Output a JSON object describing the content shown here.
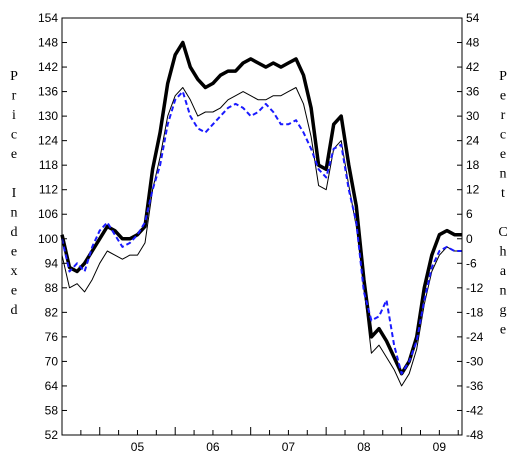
{
  "chart_data": {
    "type": "line",
    "left_axis": {
      "label": "Price Indexed",
      "ylim": [
        52,
        154
      ],
      "ticks": [
        52,
        58,
        64,
        70,
        76,
        82,
        88,
        94,
        100,
        106,
        112,
        118,
        124,
        130,
        136,
        142,
        148,
        154
      ]
    },
    "right_axis": {
      "label": "Percent Change",
      "ylim": [
        -48,
        54
      ],
      "ticks": [
        -48,
        -42,
        -36,
        -30,
        -24,
        -18,
        -12,
        -6,
        0,
        6,
        12,
        18,
        24,
        30,
        36,
        42,
        48,
        54
      ]
    },
    "x_axis": {
      "categories": [
        "05",
        "06",
        "07",
        "08",
        "09"
      ],
      "xlim": [
        2004.5,
        2009.8
      ]
    },
    "grid": false,
    "legend": "none",
    "series": [
      {
        "axis": "left",
        "color": "#000000",
        "style": "thick",
        "x": [
          2004.5,
          2004.6,
          2004.7,
          2004.8,
          2004.9,
          2005.0,
          2005.1,
          2005.2,
          2005.3,
          2005.4,
          2005.5,
          2005.6,
          2005.7,
          2005.8,
          2005.9,
          2006.0,
          2006.1,
          2006.2,
          2006.3,
          2006.4,
          2006.5,
          2006.6,
          2006.7,
          2006.8,
          2006.9,
          2007.0,
          2007.1,
          2007.2,
          2007.3,
          2007.4,
          2007.5,
          2007.6,
          2007.7,
          2007.8,
          2007.9,
          2008.0,
          2008.1,
          2008.2,
          2008.3,
          2008.4,
          2008.5,
          2008.6,
          2008.7,
          2008.8,
          2008.9,
          2009.0,
          2009.1,
          2009.2,
          2009.3,
          2009.4,
          2009.5,
          2009.6,
          2009.7,
          2009.8
        ],
        "values": [
          101,
          93,
          92,
          94,
          97,
          100,
          103,
          102,
          100,
          100,
          101,
          103,
          117,
          126,
          138,
          145,
          148,
          142,
          139,
          137,
          138,
          140,
          141,
          141,
          143,
          144,
          143,
          142,
          143,
          142,
          143,
          144,
          140,
          132,
          118,
          117,
          128,
          130,
          118,
          108,
          90,
          76,
          78,
          75,
          71,
          67,
          70,
          76,
          88,
          96,
          101,
          102,
          101,
          101
        ]
      },
      {
        "axis": "left",
        "color": "#000000",
        "style": "thin",
        "x": [
          2004.5,
          2004.6,
          2004.7,
          2004.8,
          2004.9,
          2005.0,
          2005.1,
          2005.2,
          2005.3,
          2005.4,
          2005.5,
          2005.6,
          2005.7,
          2005.8,
          2005.9,
          2006.0,
          2006.1,
          2006.2,
          2006.3,
          2006.4,
          2006.5,
          2006.6,
          2006.7,
          2006.8,
          2006.9,
          2007.0,
          2007.1,
          2007.2,
          2007.3,
          2007.4,
          2007.5,
          2007.6,
          2007.7,
          2007.8,
          2007.9,
          2008.0,
          2008.1,
          2008.2,
          2008.3,
          2008.4,
          2008.5,
          2008.6,
          2008.7,
          2008.8,
          2008.9,
          2009.0,
          2009.1,
          2009.2,
          2009.3,
          2009.4,
          2009.5,
          2009.6,
          2009.7,
          2009.8
        ],
        "values": [
          96,
          88,
          89,
          87,
          90,
          94,
          97,
          96,
          95,
          96,
          96,
          99,
          112,
          120,
          130,
          135,
          137,
          134,
          130,
          131,
          131,
          132,
          134,
          135,
          136,
          135,
          134,
          134,
          135,
          135,
          136,
          137,
          133,
          125,
          113,
          112,
          122,
          124,
          113,
          103,
          88,
          72,
          74,
          71,
          68,
          64,
          67,
          73,
          84,
          92,
          96,
          98,
          97,
          97
        ]
      },
      {
        "axis": "left",
        "color": "#1a1aff",
        "style": "dashed",
        "x": [
          2004.5,
          2004.6,
          2004.7,
          2004.8,
          2004.9,
          2005.0,
          2005.1,
          2005.2,
          2005.3,
          2005.4,
          2005.5,
          2005.6,
          2005.7,
          2005.8,
          2005.9,
          2006.0,
          2006.1,
          2006.2,
          2006.3,
          2006.4,
          2006.5,
          2006.6,
          2006.7,
          2006.8,
          2006.9,
          2007.0,
          2007.1,
          2007.2,
          2007.3,
          2007.4,
          2007.5,
          2007.6,
          2007.7,
          2007.8,
          2007.9,
          2008.0,
          2008.1,
          2008.2,
          2008.3,
          2008.4,
          2008.5,
          2008.6,
          2008.7,
          2008.8,
          2008.9,
          2009.0,
          2009.1,
          2009.2,
          2009.3,
          2009.4,
          2009.5,
          2009.6,
          2009.7,
          2009.8
        ],
        "values": [
          100,
          92,
          94,
          92,
          98,
          102,
          104,
          101,
          98,
          99,
          101,
          104,
          112,
          118,
          128,
          134,
          136,
          130,
          127,
          126,
          128,
          130,
          132,
          133,
          132,
          130,
          131,
          133,
          131,
          128,
          128,
          129,
          126,
          122,
          117,
          115,
          122,
          123,
          112,
          104,
          87,
          80,
          81,
          85,
          74,
          67,
          70,
          75,
          85,
          93,
          97,
          98,
          97,
          97
        ]
      }
    ]
  }
}
